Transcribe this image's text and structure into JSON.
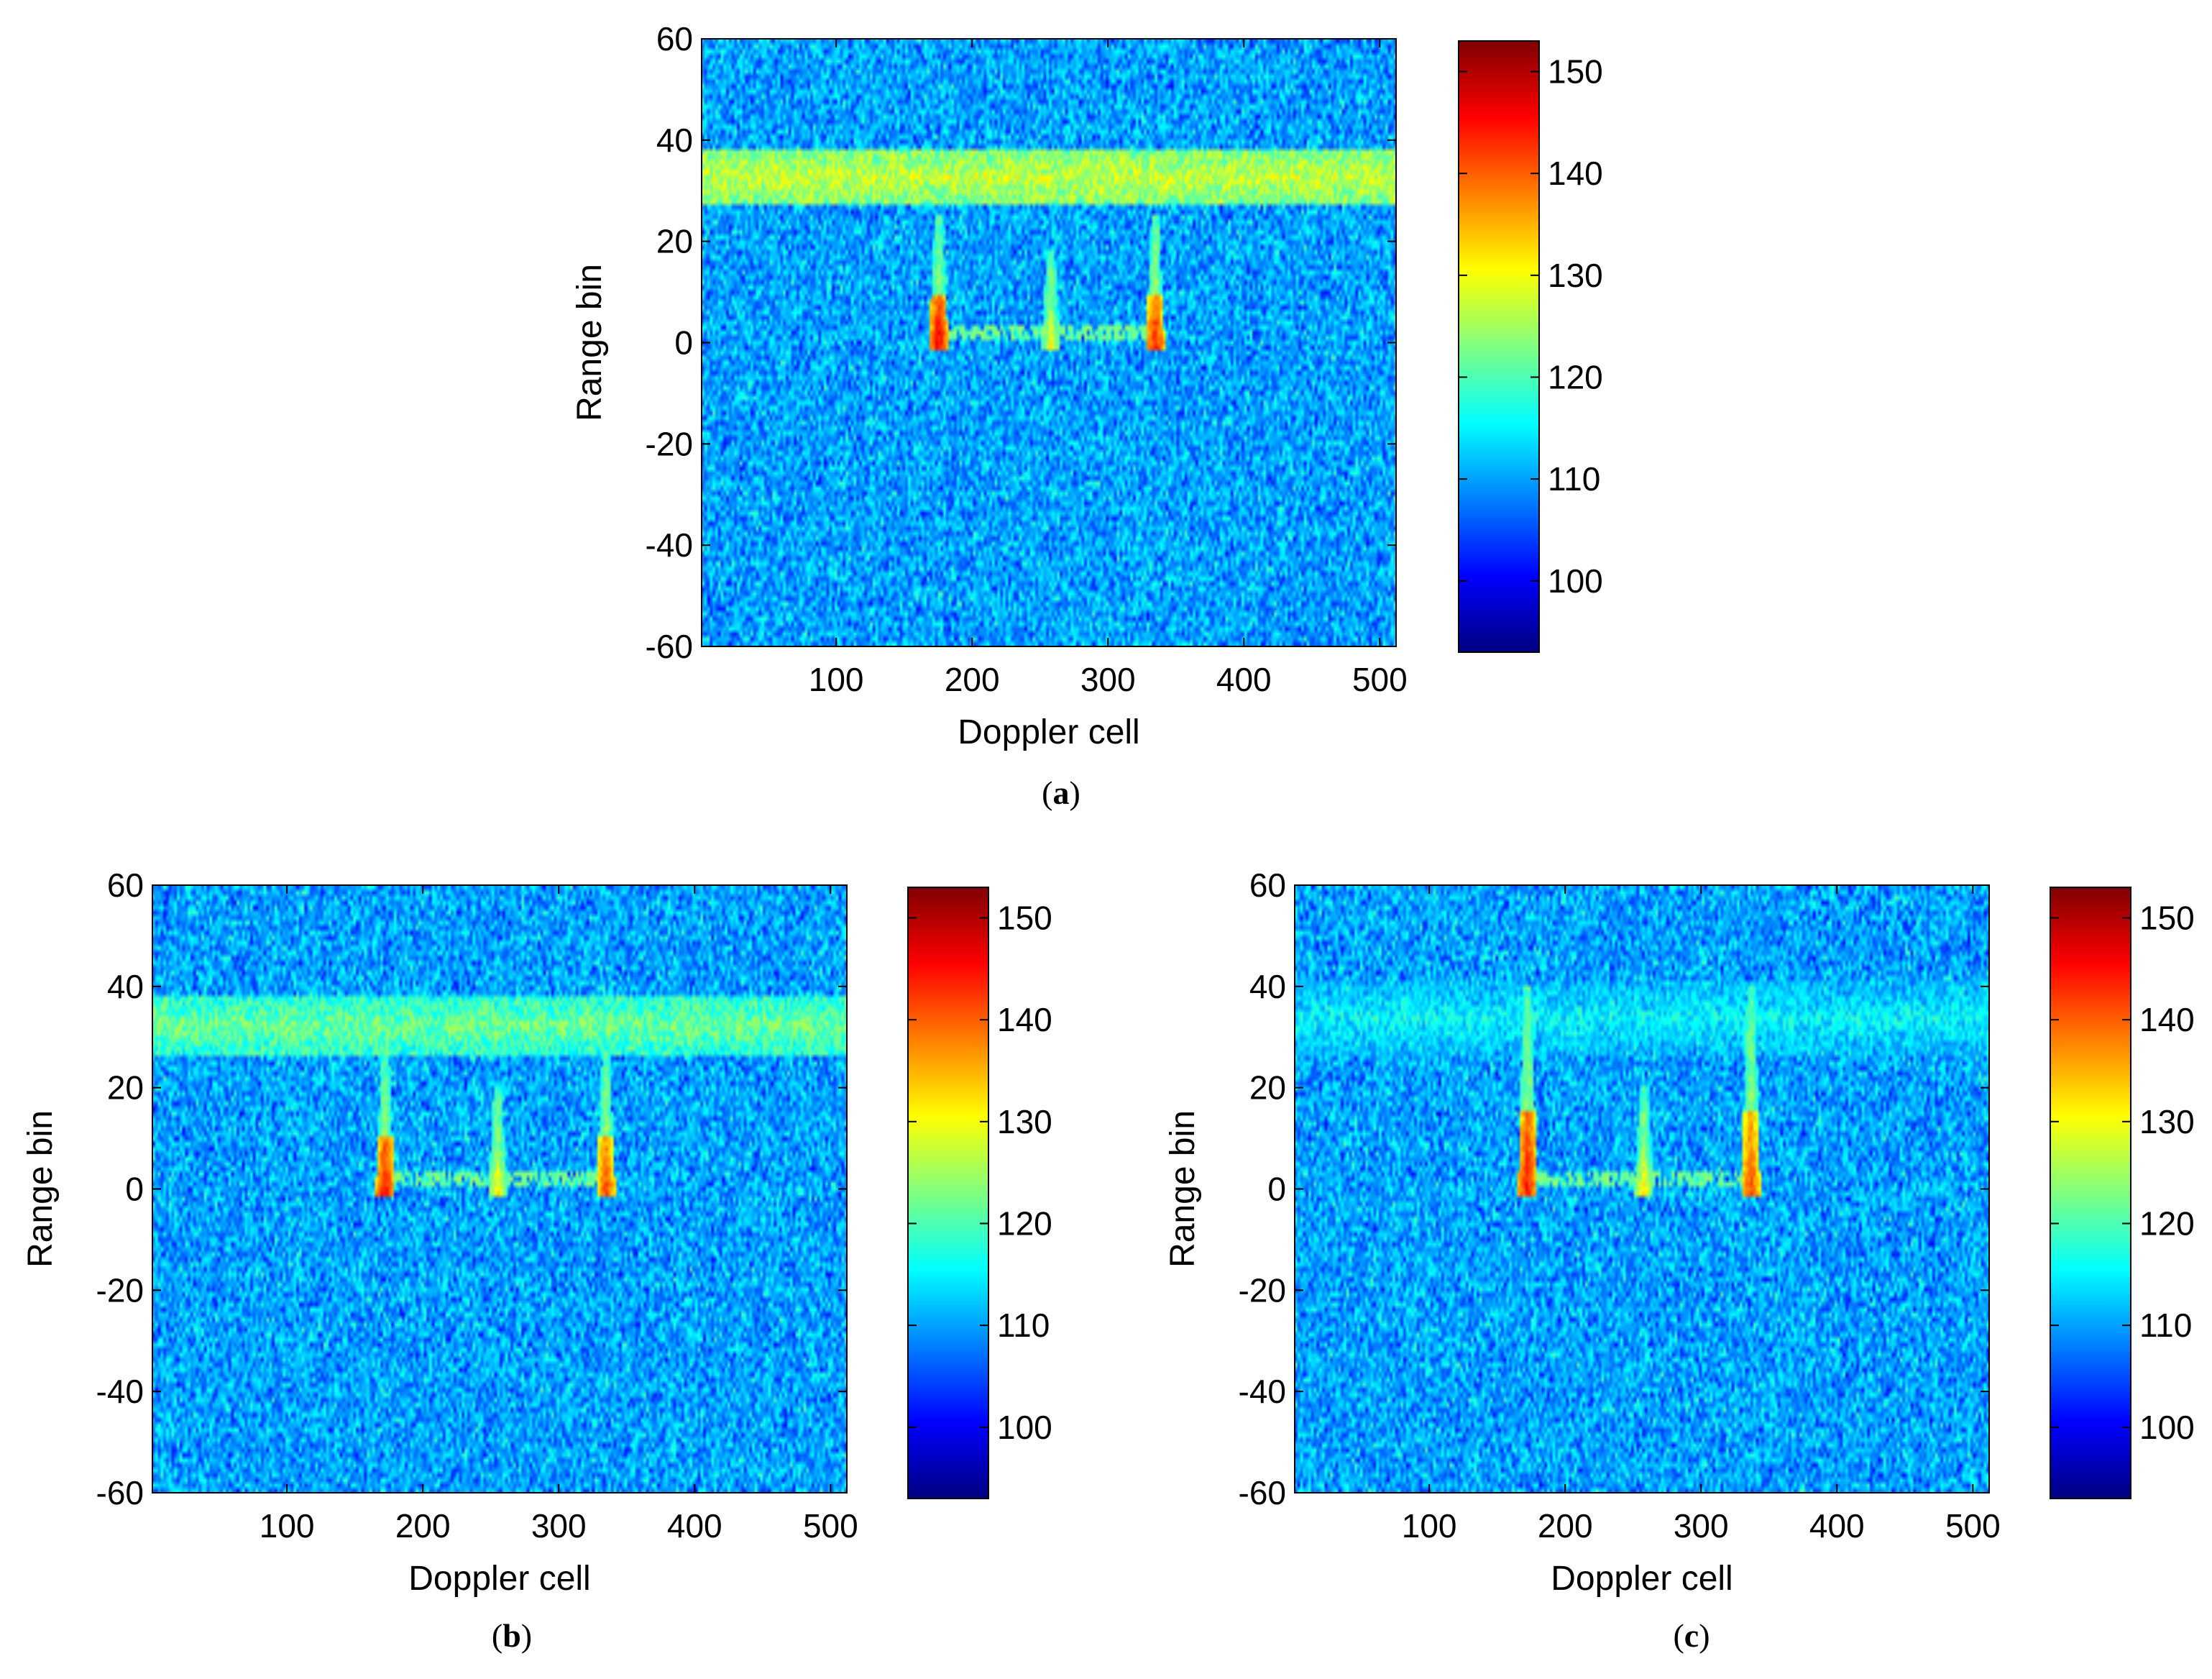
{
  "chart_data": [
    {
      "type": "heatmap",
      "panel": "a",
      "caption": {
        "open": "(",
        "letter": "a",
        "close": ")"
      },
      "title": "",
      "xlabel": "Doppler cell",
      "ylabel": "Range bin",
      "xlim": [
        1,
        512
      ],
      "ylim": [
        -60,
        60
      ],
      "xticks": [
        100,
        200,
        300,
        400,
        500
      ],
      "xtick_labels": [
        "100",
        "200",
        "300",
        "400",
        "500"
      ],
      "yticks": [
        60,
        40,
        20,
        0,
        -20,
        -40,
        -60
      ],
      "ytick_labels": [
        "60",
        "40",
        "20",
        "0",
        "-20",
        "-40",
        "-60"
      ],
      "colorbar": {
        "colormap": "jet",
        "range": [
          93,
          153
        ],
        "ticks": [
          150,
          140,
          130,
          120,
          110,
          100
        ],
        "tick_labels": [
          "150",
          "140",
          "130",
          "120",
          "110",
          "100"
        ]
      },
      "background_level": 110,
      "clutter_band": {
        "range_bin_min": 28,
        "range_bin_max": 38,
        "peak_level": 133
      },
      "targets": [
        {
          "doppler_cell": 175,
          "range_bin_top": 25,
          "range_bin_bottom": 0,
          "peak_level": 146
        },
        {
          "doppler_cell": 258,
          "range_bin_top": 18,
          "range_bin_bottom": 0,
          "peak_level": 130
        },
        {
          "doppler_cell": 335,
          "range_bin_top": 25,
          "range_bin_bottom": 0,
          "peak_level": 144
        }
      ],
      "connecting_trace": {
        "range_bin": 2,
        "doppler_from": 175,
        "doppler_to": 335,
        "level": 122
      }
    },
    {
      "type": "heatmap",
      "panel": "b",
      "caption": {
        "open": "(",
        "letter": "b",
        "close": ")"
      },
      "title": "",
      "xlabel": "Doppler cell",
      "ylabel": "Range bin",
      "xlim": [
        1,
        512
      ],
      "ylim": [
        -60,
        60
      ],
      "xticks": [
        100,
        200,
        300,
        400,
        500
      ],
      "xtick_labels": [
        "100",
        "200",
        "300",
        "400",
        "500"
      ],
      "yticks": [
        60,
        40,
        20,
        0,
        -20,
        -40,
        -60
      ],
      "ytick_labels": [
        "60",
        "40",
        "20",
        "0",
        "-20",
        "-40",
        "-60"
      ],
      "colorbar": {
        "colormap": "jet",
        "range": [
          93,
          153
        ],
        "ticks": [
          150,
          140,
          130,
          120,
          110,
          100
        ],
        "tick_labels": [
          "150",
          "140",
          "130",
          "120",
          "110",
          "100"
        ]
      },
      "background_level": 110,
      "clutter_band": {
        "range_bin_min": 27,
        "range_bin_max": 38,
        "peak_level": 128
      },
      "targets": [
        {
          "doppler_cell": 172,
          "range_bin_top": 27,
          "range_bin_bottom": 0,
          "peak_level": 145
        },
        {
          "doppler_cell": 255,
          "range_bin_top": 20,
          "range_bin_bottom": 0,
          "peak_level": 131
        },
        {
          "doppler_cell": 335,
          "range_bin_top": 27,
          "range_bin_bottom": 0,
          "peak_level": 142
        }
      ],
      "connecting_trace": {
        "range_bin": 2,
        "doppler_from": 172,
        "doppler_to": 335,
        "level": 122
      }
    },
    {
      "type": "heatmap",
      "panel": "c",
      "caption": {
        "open": "(",
        "letter": "c",
        "close": ")"
      },
      "title": "",
      "xlabel": "Doppler cell",
      "ylabel": "Range bin",
      "xlim": [
        1,
        512
      ],
      "ylim": [
        -60,
        60
      ],
      "xticks": [
        100,
        200,
        300,
        400,
        500
      ],
      "xtick_labels": [
        "100",
        "200",
        "300",
        "400",
        "500"
      ],
      "yticks": [
        60,
        40,
        20,
        0,
        -20,
        -40,
        -60
      ],
      "ytick_labels": [
        "60",
        "40",
        "20",
        "0",
        "-20",
        "-40",
        "-60"
      ],
      "colorbar": {
        "colormap": "jet",
        "range": [
          93,
          153
        ],
        "ticks": [
          150,
          140,
          130,
          120,
          110,
          100
        ],
        "tick_labels": [
          "150",
          "140",
          "130",
          "120",
          "110",
          "100"
        ]
      },
      "background_level": 110,
      "clutter_band": {
        "range_bin_min": 27,
        "range_bin_max": 41,
        "peak_level": 121
      },
      "targets": [
        {
          "doppler_cell": 172,
          "range_bin_top": 40,
          "range_bin_bottom": 0,
          "peak_level": 145
        },
        {
          "doppler_cell": 258,
          "range_bin_top": 20,
          "range_bin_bottom": 0,
          "peak_level": 131
        },
        {
          "doppler_cell": 337,
          "range_bin_top": 40,
          "range_bin_bottom": 0,
          "peak_level": 142
        }
      ],
      "connecting_trace": {
        "range_bin": 2,
        "doppler_from": 172,
        "doppler_to": 337,
        "level": 122
      }
    }
  ]
}
